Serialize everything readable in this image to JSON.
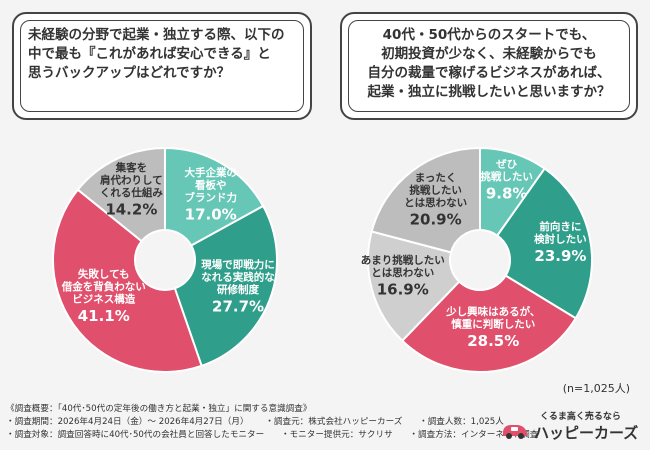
{
  "left_question": "未経験の分野で起業・独立する際、以下の\n中で最も『これがあれば安心できる』と\n思うバックアップはどれですか？",
  "right_question": "40代・50代からのスタートでも、\n初期投資が少なく、未経験からでも\n自分の裁量で稼げるビジネスがあれば、\n起業・独立に挑戦したいと思いますか？",
  "sample_size": "(n=1,025人)",
  "colors": {
    "teal": "#2f9e8a",
    "light_teal": "#66c7b6",
    "rose": "#e04f6b",
    "pink": "#e98596",
    "gray": "#bdbdbd",
    "light_gray": "#cfcfcf"
  },
  "chart_data": [
    {
      "type": "pie",
      "slices": [
        {
          "label": "大手企業の\n看板や\nブランド力",
          "value": 17.0,
          "display": "17.0%",
          "color": "#66c7b6"
        },
        {
          "label": "現場で即戦力に\nなれる実践的な\n研修制度",
          "value": 27.7,
          "display": "27.7%",
          "color": "#2f9e8a"
        },
        {
          "label": "失敗しても\n借金を背負わない\nビジネス構造",
          "value": 41.1,
          "display": "41.1%",
          "color": "#e04f6b"
        },
        {
          "label": "集客を\n肩代わりして\nくれる仕組み",
          "value": 14.2,
          "display": "14.2%",
          "color": "#bdbdbd"
        }
      ]
    },
    {
      "type": "pie",
      "slices": [
        {
          "label": "ぜひ\n挑戦したい",
          "value": 9.8,
          "display": "9.8%",
          "color": "#66c7b6"
        },
        {
          "label": "前向きに\n検討したい",
          "value": 23.9,
          "display": "23.9%",
          "color": "#2f9e8a"
        },
        {
          "label": "少し興味はあるが、\n慎重に判断したい",
          "value": 28.5,
          "display": "28.5%",
          "color": "#e04f6b"
        },
        {
          "label": "あまり挑戦したい\nとは思わない",
          "value": 16.9,
          "display": "16.9%",
          "color": "#cfcfcf"
        },
        {
          "label": "まったく\n挑戦したい\nとは思わない",
          "value": 20.9,
          "display": "20.9%",
          "color": "#bdbdbd"
        }
      ]
    }
  ],
  "footer": {
    "title": "《調査概要：「40代･50代の定年後の働き方と起業・独立」に関する意識調査》",
    "period": "・調査期間：2026年4月24日（金）～ 2026年4月27日（月）",
    "org": "・調査元：株式会社ハッピーカーズ",
    "count": "・調査人数：1,025人",
    "target": "・調査対象：調査回答時に40代･50代の会社員と回答したモニター",
    "provider": "・モニター提供元：サクリサ",
    "method": "・調査方法：インターネット調査"
  },
  "logo": {
    "tagline": "くるま高く売るなら",
    "brand": "ハッピーカーズ"
  }
}
